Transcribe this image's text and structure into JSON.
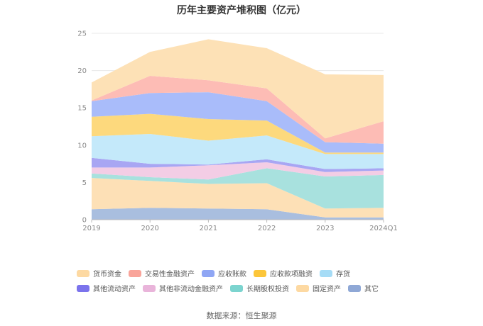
{
  "chart_data": {
    "type": "area",
    "stacked": true,
    "title": "历年主要资产堆积图（亿元）",
    "categories": [
      "2019",
      "2020",
      "2021",
      "2022",
      "2023",
      "2024Q1"
    ],
    "ylim": [
      0,
      25
    ],
    "yticks": [
      "0",
      "5",
      "10",
      "15",
      "20",
      "25"
    ],
    "grid": true,
    "legend_position": "bottom",
    "series": [
      {
        "name": "其它",
        "color": "#a9bedf",
        "values": [
          1.4,
          1.6,
          1.5,
          1.4,
          0.3,
          0.3
        ]
      },
      {
        "name": "固定资产",
        "color": "#fde0b6",
        "values": [
          4.2,
          3.6,
          3.3,
          3.5,
          1.2,
          1.3
        ]
      },
      {
        "name": "长期股权投资",
        "color": "#a8e1de",
        "values": [
          0.6,
          0.5,
          0.6,
          2.0,
          4.3,
          4.4
        ]
      },
      {
        "name": "其他非流动金融资产",
        "color": "#f3cde5",
        "values": [
          0.8,
          1.3,
          1.9,
          0.8,
          0.6,
          0.6
        ]
      },
      {
        "name": "其他流动资产",
        "color": "#a8a6f3",
        "values": [
          1.3,
          0.5,
          0.1,
          0.4,
          0.4,
          0.3
        ]
      },
      {
        "name": "存货",
        "color": "#c4e9fa",
        "values": [
          2.9,
          4.0,
          3.2,
          3.2,
          2.0,
          1.9
        ]
      },
      {
        "name": "应收款项融资",
        "color": "#fdd97d",
        "values": [
          2.6,
          2.7,
          2.9,
          2.0,
          0.2,
          0.2
        ]
      },
      {
        "name": "应收账款",
        "color": "#a9bcfa",
        "values": [
          2.1,
          2.8,
          3.6,
          2.6,
          1.4,
          1.2
        ]
      },
      {
        "name": "交易性金融资产",
        "color": "#fdbcb5",
        "values": [
          0.1,
          2.3,
          1.6,
          1.7,
          0.5,
          3.0
        ]
      },
      {
        "name": "货币资金",
        "color": "#fde1b6",
        "values": [
          2.4,
          3.2,
          5.5,
          5.4,
          8.6,
          6.2
        ]
      }
    ]
  },
  "legend": [
    {
      "label": "货币资金",
      "color": "#fdd9a2"
    },
    {
      "label": "交易性金融资产",
      "color": "#f9a49a"
    },
    {
      "label": "应收账款",
      "color": "#8fa6f4"
    },
    {
      "label": "应收款项融资",
      "color": "#fcc63a"
    },
    {
      "label": "存货",
      "color": "#a6dcf6"
    },
    {
      "label": "其他流动资产",
      "color": "#7b73ec"
    },
    {
      "label": "其他非流动金融资产",
      "color": "#e9b4da"
    },
    {
      "label": "长期股权投资",
      "color": "#7cd4cf"
    },
    {
      "label": "固定资产",
      "color": "#fdd9a2"
    },
    {
      "label": "其它",
      "color": "#8fa8d6"
    }
  ],
  "source_note": "数据来源：恒生聚源"
}
